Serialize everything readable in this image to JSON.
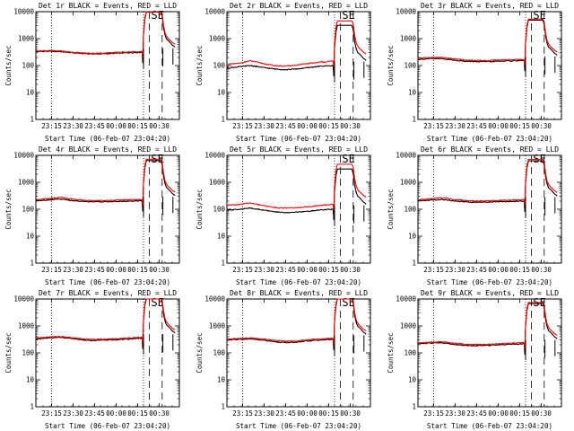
{
  "chart_data": [
    {
      "type": "line",
      "title": "Det 1r BLACK = Events, RED = LLD",
      "ylabel": "Counts/sec",
      "xlabel": "Start Time (06-Feb-07 23:04:20)",
      "xticks": [
        "23:15",
        "23:30",
        "23:45",
        "00:00",
        "00:15",
        "00:30"
      ],
      "yticks": [
        "1",
        "10",
        "100",
        "1000",
        "10000"
      ],
      "ylim": [
        1,
        10000
      ],
      "xlim_minutes": [
        0,
        100
      ],
      "annotation": "SE",
      "vlines_dotted_min": [
        11,
        75
      ],
      "vlines_dashed_min": [
        79,
        88
      ],
      "series": [
        {
          "name": "Events",
          "color": "#000000",
          "base": [
            330,
            340,
            330,
            300,
            280,
            270,
            275,
            290,
            300,
            310
          ]
        },
        {
          "name": "LLD",
          "color": "#ff0000",
          "base": [
            350,
            360,
            350,
            315,
            290,
            285,
            295,
            310,
            320,
            330
          ]
        }
      ]
    },
    {
      "type": "line",
      "title": "Det 2r BLACK = Events, RED = LLD",
      "ylabel": "Counts/sec",
      "xlabel": "Start Time (06-Feb-07 23:04:20)",
      "xticks": [
        "23:15",
        "23:30",
        "23:45",
        "00:00",
        "00:15",
        "00:30"
      ],
      "yticks": [
        "1",
        "10",
        "100",
        "1000",
        "10000"
      ],
      "ylim": [
        1,
        10000
      ],
      "xlim_minutes": [
        0,
        100
      ],
      "annotation": "SE",
      "vlines_dotted_min": [
        11,
        75
      ],
      "vlines_dashed_min": [
        79,
        88
      ],
      "series": [
        {
          "name": "Events",
          "color": "#000000",
          "base": [
            80,
            90,
            100,
            85,
            75,
            70,
            75,
            85,
            95,
            100
          ]
        },
        {
          "name": "LLD",
          "color": "#ff0000",
          "base": [
            110,
            120,
            150,
            120,
            100,
            95,
            105,
            120,
            135,
            145
          ]
        }
      ]
    },
    {
      "type": "line",
      "title": "Det 3r BLACK = Events, RED = LLD",
      "ylabel": "Counts/sec",
      "xlabel": "Start Time (06-Feb-07 23:04:20)",
      "xticks": [
        "23:15",
        "23:30",
        "23:45",
        "00:00",
        "00:15",
        "00:30"
      ],
      "yticks": [
        "1",
        "10",
        "100",
        "1000",
        "10000"
      ],
      "ylim": [
        1,
        10000
      ],
      "xlim_minutes": [
        0,
        100
      ],
      "annotation": "SE",
      "vlines_dotted_min": [
        11,
        75
      ],
      "vlines_dashed_min": [
        79,
        88
      ],
      "series": [
        {
          "name": "Events",
          "color": "#000000",
          "base": [
            170,
            180,
            180,
            160,
            145,
            140,
            140,
            145,
            150,
            155
          ]
        },
        {
          "name": "LLD",
          "color": "#ff0000",
          "base": [
            190,
            200,
            200,
            180,
            160,
            155,
            155,
            160,
            165,
            170
          ]
        }
      ]
    },
    {
      "type": "line",
      "title": "Det 4r BLACK = Events, RED = LLD",
      "ylabel": "Counts/sec",
      "xlabel": "Start Time (06-Feb-07 23:04:20)",
      "xticks": [
        "23:15",
        "23:30",
        "23:45",
        "00:00",
        "00:15",
        "00:30"
      ],
      "yticks": [
        "1",
        "10",
        "100",
        "1000",
        "10000"
      ],
      "ylim": [
        1,
        10000
      ],
      "xlim_minutes": [
        0,
        100
      ],
      "annotation": "SE",
      "vlines_dotted_min": [
        11,
        75
      ],
      "vlines_dashed_min": [
        79,
        88
      ],
      "series": [
        {
          "name": "Events",
          "color": "#000000",
          "base": [
            210,
            220,
            240,
            210,
            195,
            190,
            190,
            195,
            200,
            205
          ]
        },
        {
          "name": "LLD",
          "color": "#ff0000",
          "base": [
            230,
            245,
            280,
            240,
            215,
            210,
            210,
            220,
            225,
            230
          ]
        }
      ]
    },
    {
      "type": "line",
      "title": "Det 5r BLACK = Events, RED = LLD",
      "ylabel": "Counts/sec",
      "xlabel": "Start Time (06-Feb-07 23:04:20)",
      "xticks": [
        "23:15",
        "23:30",
        "23:45",
        "00:00",
        "00:15",
        "00:30"
      ],
      "yticks": [
        "1",
        "10",
        "100",
        "1000",
        "10000"
      ],
      "ylim": [
        1,
        10000
      ],
      "xlim_minutes": [
        0,
        100
      ],
      "annotation": "SE",
      "vlines_dotted_min": [
        11,
        75
      ],
      "vlines_dashed_min": [
        79,
        88
      ],
      "series": [
        {
          "name": "Events",
          "color": "#000000",
          "base": [
            90,
            100,
            110,
            95,
            80,
            75,
            78,
            85,
            95,
            100
          ]
        },
        {
          "name": "LLD",
          "color": "#ff0000",
          "base": [
            140,
            150,
            170,
            140,
            115,
            110,
            115,
            125,
            140,
            150
          ]
        }
      ]
    },
    {
      "type": "line",
      "title": "Det 6r BLACK = Events, RED = LLD",
      "ylabel": "Counts/sec",
      "xlabel": "Start Time (06-Feb-07 23:04:20)",
      "xticks": [
        "23:15",
        "23:30",
        "23:45",
        "00:00",
        "00:15",
        "00:30"
      ],
      "yticks": [
        "1",
        "10",
        "100",
        "1000",
        "10000"
      ],
      "ylim": [
        1,
        10000
      ],
      "xlim_minutes": [
        0,
        100
      ],
      "annotation": "SE",
      "vlines_dotted_min": [
        11,
        75
      ],
      "vlines_dashed_min": [
        79,
        88
      ],
      "series": [
        {
          "name": "Events",
          "color": "#000000",
          "base": [
            205,
            215,
            230,
            205,
            190,
            180,
            185,
            190,
            195,
            200
          ]
        },
        {
          "name": "LLD",
          "color": "#ff0000",
          "base": [
            225,
            240,
            270,
            235,
            210,
            200,
            205,
            215,
            220,
            225
          ]
        }
      ]
    },
    {
      "type": "line",
      "title": "Det 7r BLACK = Events, RED = LLD",
      "ylabel": "Counts/sec",
      "xlabel": "Start Time (06-Feb-07 23:04:20)",
      "xticks": [
        "23:15",
        "23:30",
        "23:45",
        "00:00",
        "00:15",
        "00:30"
      ],
      "yticks": [
        "1",
        "10",
        "100",
        "1000",
        "10000"
      ],
      "ylim": [
        1,
        10000
      ],
      "xlim_minutes": [
        0,
        100
      ],
      "annotation": "SE",
      "vlines_dotted_min": [
        11,
        75
      ],
      "vlines_dashed_min": [
        79,
        88
      ],
      "series": [
        {
          "name": "Events",
          "color": "#000000",
          "base": [
            330,
            350,
            380,
            340,
            300,
            290,
            300,
            310,
            330,
            350
          ]
        },
        {
          "name": "LLD",
          "color": "#ff0000",
          "base": [
            360,
            380,
            410,
            370,
            330,
            320,
            330,
            340,
            360,
            380
          ]
        }
      ]
    },
    {
      "type": "line",
      "title": "Det 8r BLACK = Events, RED = LLD",
      "ylabel": "Counts/sec",
      "xlabel": "Start Time (06-Feb-07 23:04:20)",
      "xticks": [
        "23:15",
        "23:30",
        "23:45",
        "00:00",
        "00:15",
        "00:30"
      ],
      "yticks": [
        "1",
        "10",
        "100",
        "1000",
        "10000"
      ],
      "ylim": [
        1,
        10000
      ],
      "xlim_minutes": [
        0,
        100
      ],
      "annotation": "SE",
      "vlines_dotted_min": [
        11,
        75
      ],
      "vlines_dashed_min": [
        79,
        88
      ],
      "series": [
        {
          "name": "Events",
          "color": "#000000",
          "base": [
            300,
            320,
            330,
            300,
            260,
            240,
            250,
            280,
            300,
            320
          ]
        },
        {
          "name": "LLD",
          "color": "#ff0000",
          "base": [
            330,
            345,
            360,
            330,
            290,
            270,
            280,
            310,
            330,
            350
          ]
        }
      ]
    },
    {
      "type": "line",
      "title": "Det 9r BLACK = Events, RED = LLD",
      "ylabel": "Counts/sec",
      "xlabel": "Start Time (06-Feb-07 23:04:20)",
      "xticks": [
        "23:15",
        "23:30",
        "23:45",
        "00:00",
        "00:15",
        "00:30"
      ],
      "yticks": [
        "1",
        "10",
        "100",
        "1000",
        "10000"
      ],
      "ylim": [
        1,
        10000
      ],
      "xlim_minutes": [
        0,
        100
      ],
      "annotation": "SE",
      "vlines_dotted_min": [
        11,
        75
      ],
      "vlines_dashed_min": [
        79,
        88
      ],
      "series": [
        {
          "name": "Events",
          "color": "#000000",
          "base": [
            220,
            230,
            240,
            210,
            190,
            185,
            190,
            200,
            210,
            215
          ]
        },
        {
          "name": "LLD",
          "color": "#ff0000",
          "base": [
            240,
            250,
            260,
            230,
            210,
            205,
            210,
            220,
            230,
            240
          ]
        }
      ]
    }
  ],
  "spike_profile": {
    "minutes": [
      75,
      76,
      77,
      78,
      79,
      80,
      81,
      82,
      83,
      84,
      85,
      86,
      87,
      88,
      89,
      90,
      91,
      92,
      93,
      94,
      95,
      96,
      97
    ],
    "red": [
      1500,
      6000,
      10000,
      10000,
      10000,
      10000,
      10000,
      10000,
      10000,
      10000,
      10000,
      10000,
      10000,
      8000,
      3000,
      1600,
      1200,
      1000,
      900,
      800,
      700,
      650,
      600
    ],
    "black": [
      1400,
      5500,
      10000,
      10000,
      10000,
      10000,
      10000,
      10000,
      10000,
      10000,
      10000,
      10000,
      10000,
      7000,
      2500,
      1400,
      1000,
      900,
      800,
      700,
      600,
      550,
      500
    ]
  }
}
